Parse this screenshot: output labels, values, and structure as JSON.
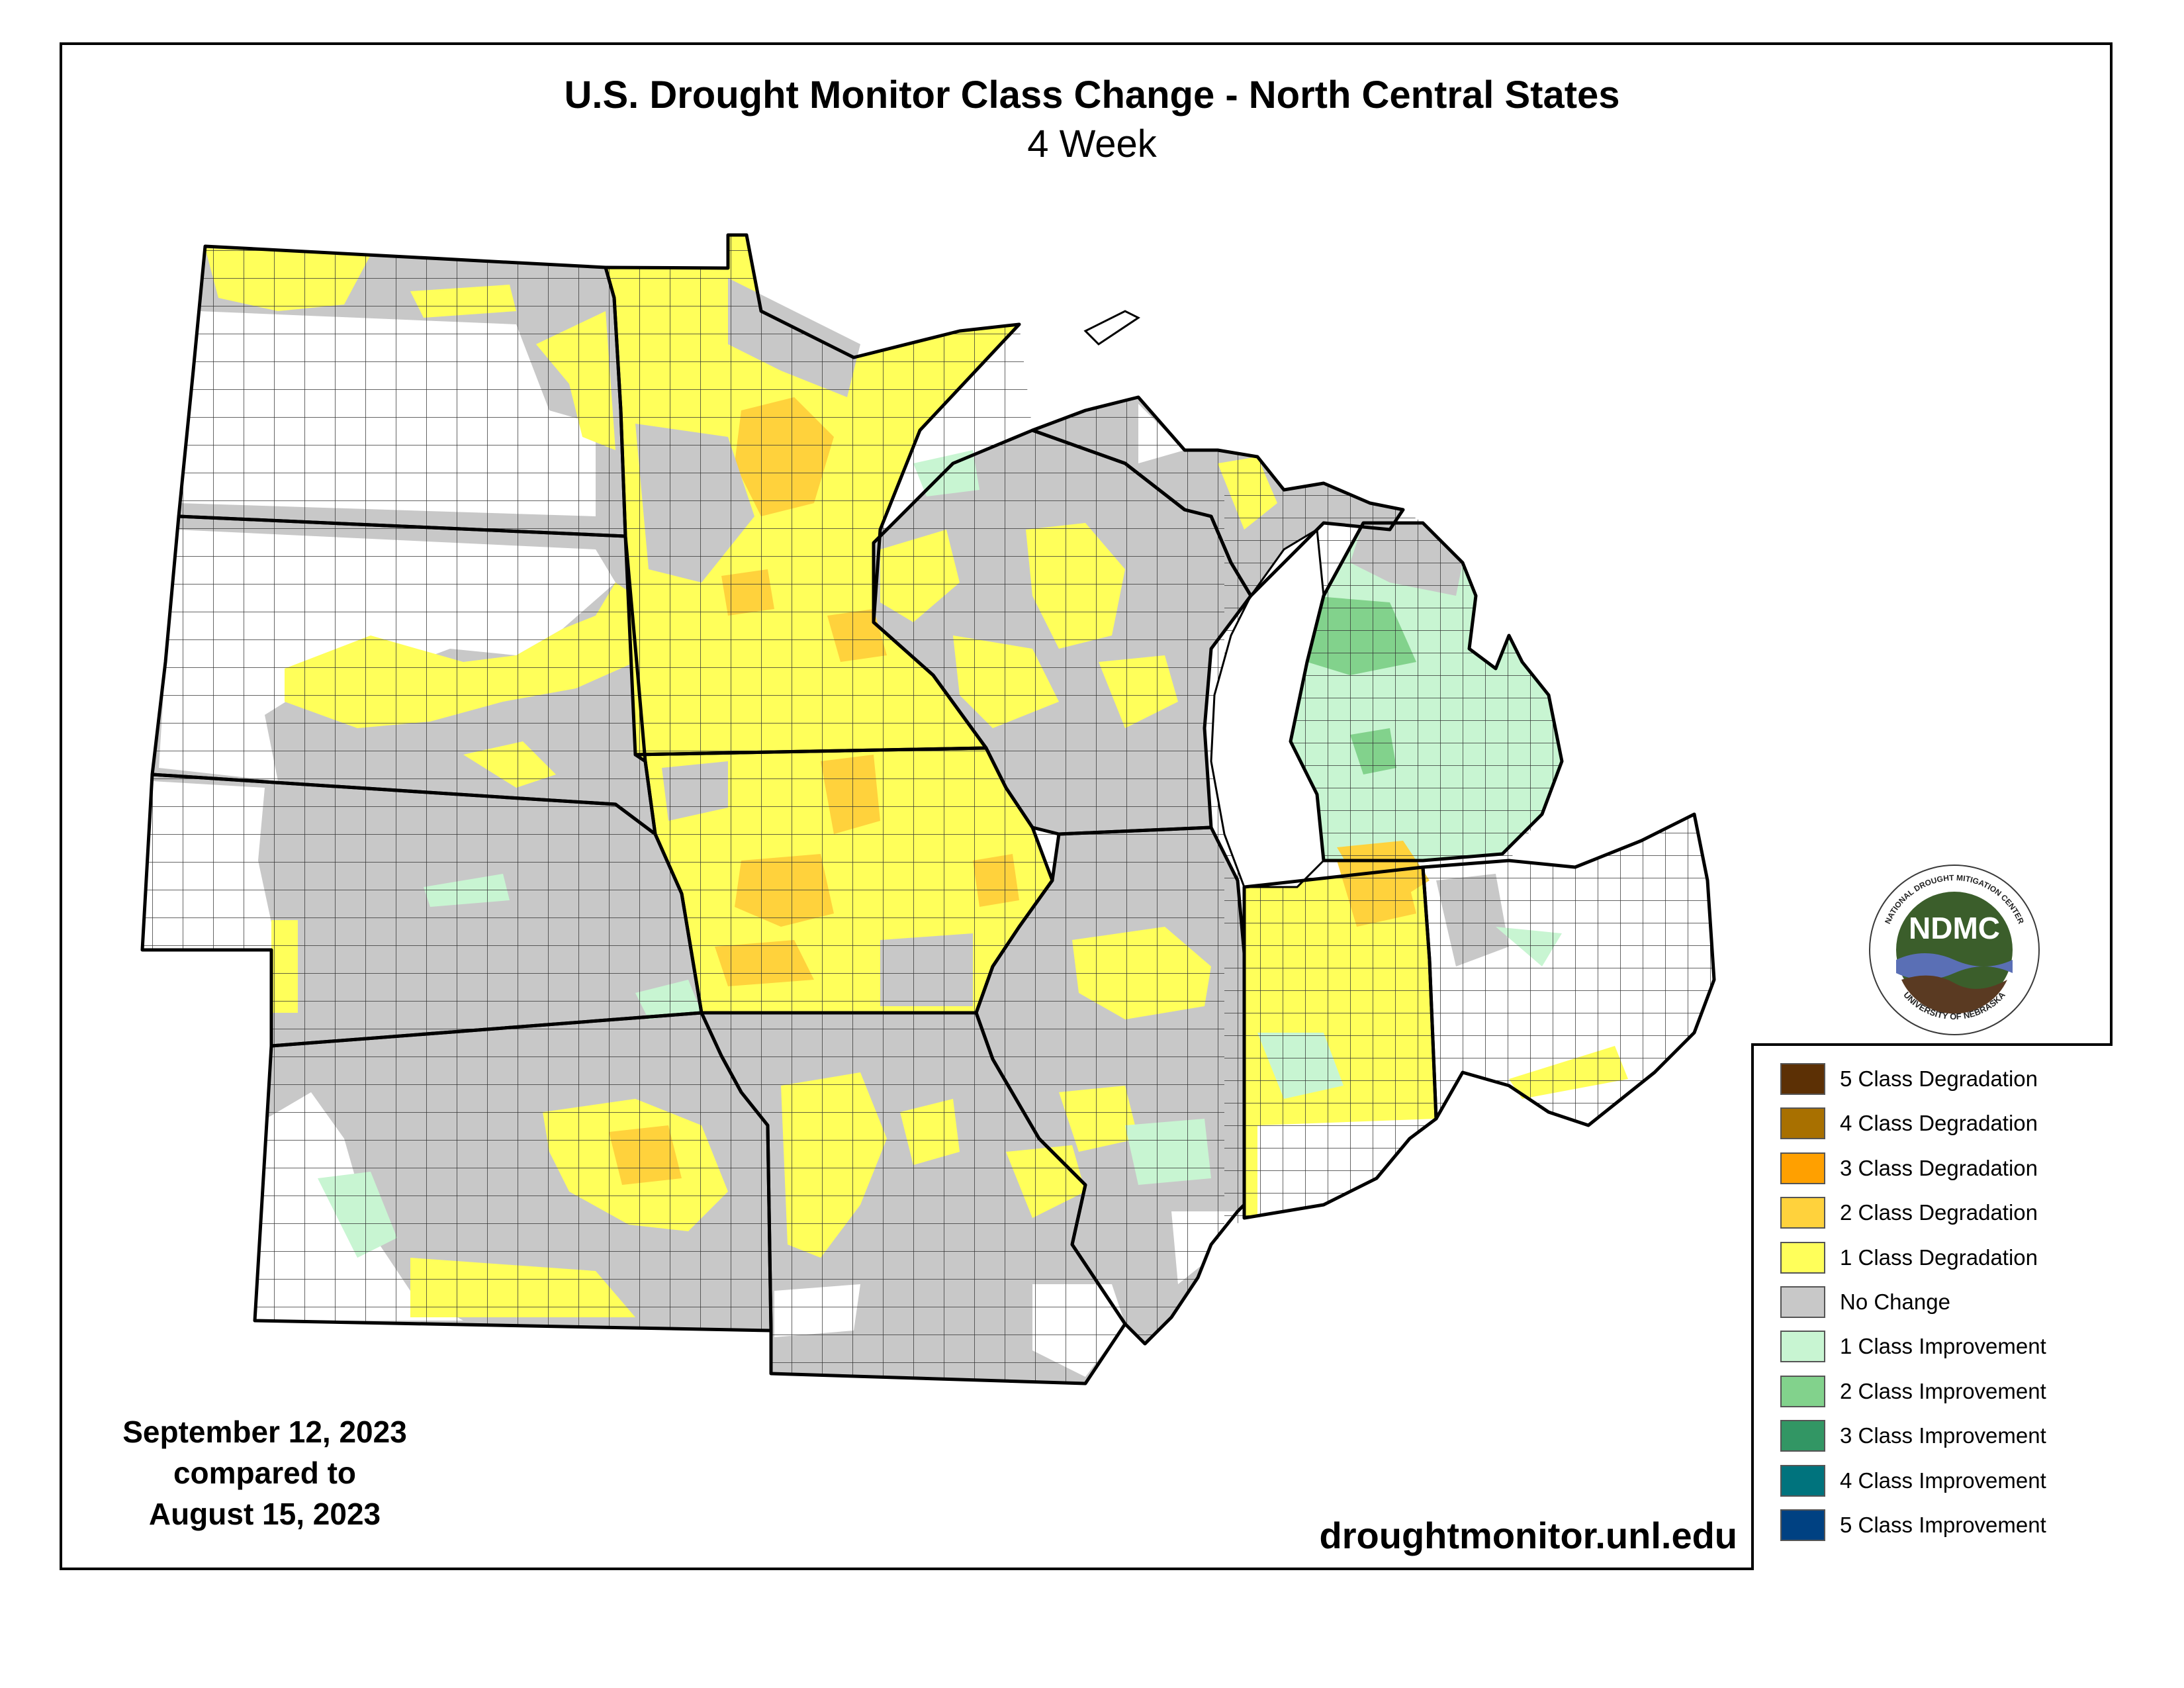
{
  "header": {
    "title": "U.S. Drought Monitor Class Change - North Central States",
    "subtitle": "4 Week"
  },
  "dates": {
    "line1": "September 12, 2023",
    "line2": "compared to",
    "line3": "August 15, 2023"
  },
  "source_url": "droughtmonitor.unl.edu",
  "logo": {
    "initials": "NDMC",
    "ring_top": "NATIONAL DROUGHT MITIGATION CENTER",
    "ring_bottom": "UNIVERSITY OF NEBRASKA"
  },
  "legend": {
    "items": [
      {
        "label": "5 Class Degradation",
        "color": "#5c3005"
      },
      {
        "label": "4 Class Degradation",
        "color": "#a87000"
      },
      {
        "label": "3 Class Degradation",
        "color": "#ffa000"
      },
      {
        "label": "2 Class Degradation",
        "color": "#ffd23c"
      },
      {
        "label": "1 Class Degradation",
        "color": "#ffff5a"
      },
      {
        "label": "No Change",
        "color": "#c8c8c8"
      },
      {
        "label": "1 Class Improvement",
        "color": "#c8f5d2"
      },
      {
        "label": "2 Class Improvement",
        "color": "#82d28c"
      },
      {
        "label": "3 Class Improvement",
        "color": "#329664"
      },
      {
        "label": "4 Class Improvement",
        "color": "#00737d"
      },
      {
        "label": "5 Class Improvement",
        "color": "#004182"
      }
    ]
  }
}
